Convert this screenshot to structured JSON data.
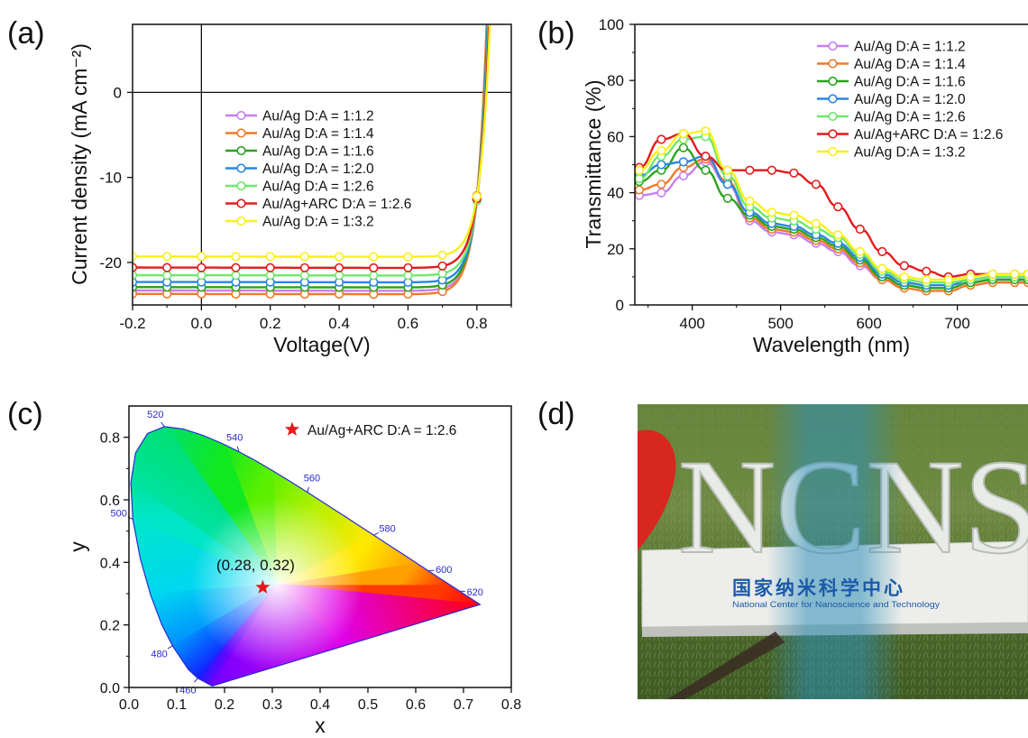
{
  "panels": {
    "a": "(a)",
    "b": "(b)",
    "c": "(c)",
    "d": "(d)"
  },
  "colors": {
    "series": [
      "#c87ff0",
      "#ef7a2a",
      "#2aa31e",
      "#2a86e6",
      "#6ee86a",
      "#e31a1c",
      "#f7f01a"
    ],
    "star": "#e31a1c"
  },
  "chart_data": [
    {
      "id": "a",
      "type": "line",
      "xlabel": "Voltage(V)",
      "ylabel": "Current density (mA cm⁻²)",
      "xlim": [
        -0.2,
        0.9
      ],
      "ylim": [
        -25,
        8
      ],
      "xticks": [
        "-0.2",
        "0.0",
        "0.2",
        "0.4",
        "0.6",
        "0.8"
      ],
      "xtick_values": [
        -0.2,
        0.0,
        0.2,
        0.4,
        0.6,
        0.8
      ],
      "yticks": [
        "-20",
        "-10",
        "0"
      ],
      "ytick_values": [
        -20,
        -10,
        0
      ],
      "legend_position": "center-left",
      "series": [
        {
          "name": "Au/Ag D:A = 1:1.2",
          "jsc": -23.3
        },
        {
          "name": "Au/Ag D:A = 1:1.4",
          "jsc": -23.7
        },
        {
          "name": "Au/Ag D:A = 1:1.6",
          "jsc": -22.9
        },
        {
          "name": "Au/Ag D:A = 1:2.0",
          "jsc": -22.3
        },
        {
          "name": "Au/Ag D:A = 1:2.6",
          "jsc": -21.5
        },
        {
          "name": "Au/Ag+ARC D:A = 1:2.6",
          "jsc": -20.6
        },
        {
          "name": "Au/Ag D:A = 1:3.2",
          "jsc": -19.3
        }
      ]
    },
    {
      "id": "b",
      "type": "line",
      "xlabel": "Wavelength (nm)",
      "ylabel": "Transmittance (%)",
      "xlim": [
        335,
        780
      ],
      "ylim": [
        0,
        100
      ],
      "xticks": [
        "400",
        "500",
        "600",
        "700"
      ],
      "xtick_values": [
        400,
        500,
        600,
        700
      ],
      "yticks": [
        "0",
        "20",
        "40",
        "60",
        "80",
        "100"
      ],
      "ytick_values": [
        0,
        20,
        40,
        60,
        80,
        100
      ],
      "legend_position": "top-right",
      "x": [
        340,
        365,
        390,
        415,
        440,
        465,
        490,
        515,
        540,
        565,
        590,
        615,
        640,
        665,
        690,
        715,
        740,
        765,
        780
      ],
      "series": [
        {
          "name": "Au/Ag D:A = 1:1.2",
          "values": [
            39,
            40,
            46,
            51,
            43,
            30,
            26,
            25,
            22,
            19,
            14,
            9,
            7,
            6,
            6,
            8,
            9,
            9,
            9
          ]
        },
        {
          "name": "Au/Ag D:A = 1:1.4",
          "values": [
            41,
            43,
            49,
            52,
            44,
            31,
            27,
            26,
            23,
            20,
            15,
            9,
            6,
            5,
            5,
            7,
            8,
            8,
            8
          ]
        },
        {
          "name": "Au/Ag D:A = 1:1.6",
          "values": [
            44,
            48,
            56,
            48,
            38,
            32,
            28,
            27,
            24,
            21,
            16,
            10,
            7,
            6,
            6,
            8,
            9,
            9,
            9
          ]
        },
        {
          "name": "Au/Ag D:A = 1:2.0",
          "values": [
            46,
            50,
            51,
            53,
            43,
            33,
            29,
            28,
            25,
            22,
            17,
            11,
            8,
            7,
            7,
            9,
            10,
            10,
            10
          ]
        },
        {
          "name": "Au/Ag D:A = 1:2.6",
          "values": [
            45,
            53,
            59,
            60,
            46,
            35,
            31,
            30,
            27,
            24,
            18,
            12,
            9,
            8,
            8,
            9,
            10,
            10,
            10
          ]
        },
        {
          "name": "Au/Ag+ARC D:A = 1:2.6",
          "values": [
            49,
            59,
            61,
            53,
            48,
            48,
            48,
            47,
            43,
            35,
            27,
            19,
            14,
            12,
            10,
            11,
            11,
            11,
            11
          ]
        },
        {
          "name": "Au/Ag D:A = 1:3.2",
          "values": [
            48,
            55,
            61,
            62,
            48,
            37,
            33,
            32,
            29,
            25,
            19,
            13,
            10,
            9,
            9,
            10,
            11,
            11,
            11
          ]
        }
      ]
    },
    {
      "id": "c",
      "type": "scatter",
      "xlabel": "x",
      "ylabel": "y",
      "xlim": [
        0.0,
        0.8
      ],
      "ylim": [
        0.0,
        0.9
      ],
      "xticks": [
        "0.0",
        "0.1",
        "0.2",
        "0.3",
        "0.4",
        "0.5",
        "0.6",
        "0.7",
        "0.8"
      ],
      "xtick_values": [
        0.0,
        0.1,
        0.2,
        0.3,
        0.4,
        0.5,
        0.6,
        0.7,
        0.8
      ],
      "yticks": [
        "0.0",
        "0.2",
        "0.4",
        "0.6",
        "0.8"
      ],
      "ytick_values": [
        0.0,
        0.2,
        0.4,
        0.6,
        0.8
      ],
      "legend_position": "top-right",
      "point": {
        "name": "Au/Ag+ARC D:A = 1:2.6",
        "x": 0.28,
        "y": 0.32,
        "annotation": "(0.28, 0.32)"
      },
      "locus": [
        [
          0.1741,
          0.005
        ],
        [
          0.144,
          0.0297
        ],
        [
          0.1241,
          0.0578
        ],
        [
          0.0913,
          0.1327
        ],
        [
          0.0687,
          0.2007
        ],
        [
          0.0454,
          0.295
        ],
        [
          0.0235,
          0.4127
        ],
        [
          0.0082,
          0.5384
        ],
        [
          0.0039,
          0.6548
        ],
        [
          0.0139,
          0.7502
        ],
        [
          0.0389,
          0.812
        ],
        [
          0.0743,
          0.8338
        ],
        [
          0.1142,
          0.8262
        ],
        [
          0.1547,
          0.8059
        ],
        [
          0.1929,
          0.7816
        ],
        [
          0.2296,
          0.7543
        ],
        [
          0.2658,
          0.7243
        ],
        [
          0.3016,
          0.6923
        ],
        [
          0.3373,
          0.6589
        ],
        [
          0.3731,
          0.6245
        ],
        [
          0.4087,
          0.5896
        ],
        [
          0.4441,
          0.5547
        ],
        [
          0.4788,
          0.5202
        ],
        [
          0.5125,
          0.4866
        ],
        [
          0.5448,
          0.4544
        ],
        [
          0.5752,
          0.4242
        ],
        [
          0.6029,
          0.3965
        ],
        [
          0.627,
          0.3725
        ],
        [
          0.6482,
          0.3514
        ],
        [
          0.6658,
          0.334
        ],
        [
          0.6915,
          0.3083
        ],
        [
          0.7347,
          0.2653
        ]
      ],
      "wavelength_labels": [
        {
          "label": "460",
          "x": 0.144,
          "y": 0.03
        },
        {
          "label": "480",
          "x": 0.091,
          "y": 0.133
        },
        {
          "label": "500",
          "x": 0.008,
          "y": 0.538
        },
        {
          "label": "520",
          "x": 0.074,
          "y": 0.834
        },
        {
          "label": "540",
          "x": 0.23,
          "y": 0.754
        },
        {
          "label": "560",
          "x": 0.373,
          "y": 0.624
        },
        {
          "label": "580",
          "x": 0.512,
          "y": 0.487
        },
        {
          "label": "600",
          "x": 0.627,
          "y": 0.373
        },
        {
          "label": "620",
          "x": 0.692,
          "y": 0.308
        }
      ]
    }
  ],
  "photo": {
    "sign_letters": "NCNS",
    "cn_text": "国家纳米科学中心",
    "en_text": "National Center for Nanoscience and Technology"
  }
}
